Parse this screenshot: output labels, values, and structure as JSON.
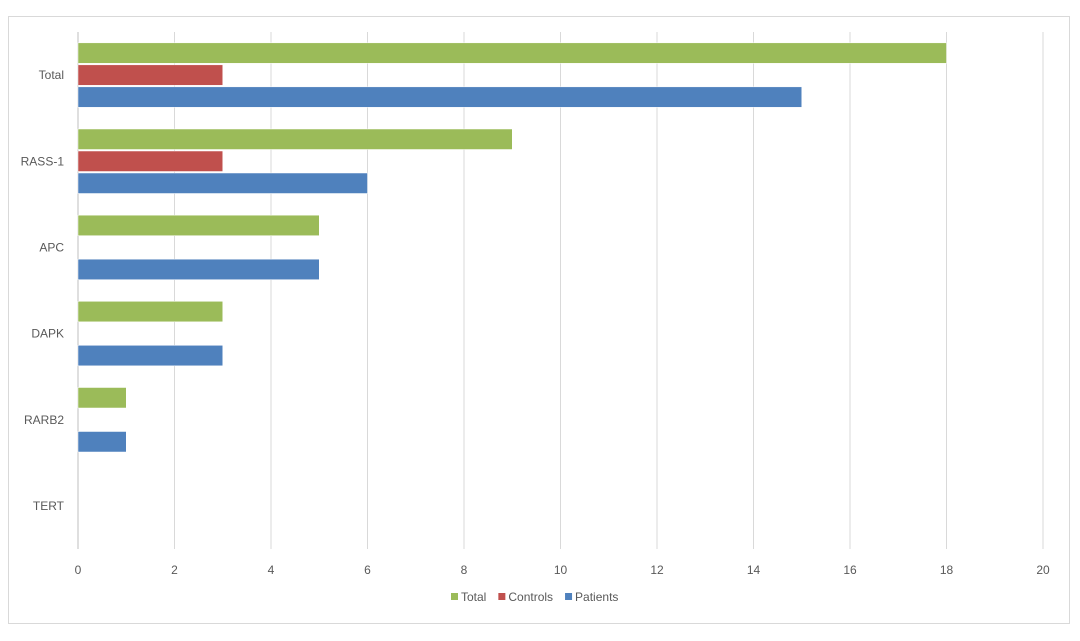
{
  "chart_data": {
    "type": "bar",
    "orientation": "horizontal",
    "categories": [
      "Total",
      "RASS-1",
      "APC",
      "DAPK",
      "RARB2",
      "TERT"
    ],
    "series": [
      {
        "name": "Total",
        "color": "#9bbb59",
        "values": [
          18,
          9,
          5,
          3,
          1,
          0
        ]
      },
      {
        "name": "Controls",
        "color": "#c0504d",
        "values": [
          3,
          3,
          0,
          0,
          0,
          0
        ]
      },
      {
        "name": "Patients",
        "color": "#4f81bd",
        "values": [
          15,
          6,
          5,
          3,
          1,
          0
        ]
      }
    ],
    "xlim": [
      0,
      20
    ],
    "xticks": [
      0,
      2,
      4,
      6,
      8,
      10,
      12,
      14,
      16,
      18,
      20
    ],
    "xlabel": "",
    "ylabel": "",
    "title": "",
    "grid": "vertical",
    "legend": "bottom-center"
  }
}
